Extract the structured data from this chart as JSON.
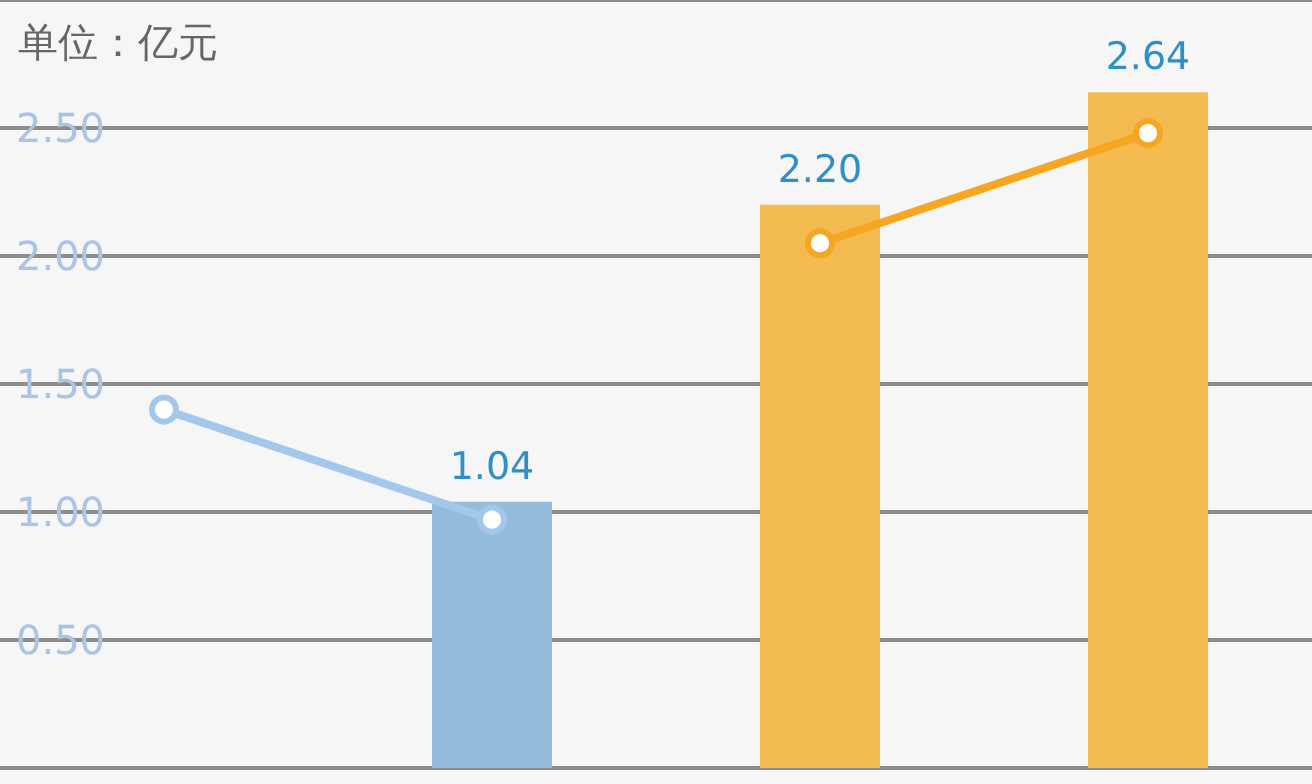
{
  "chart_data": {
    "type": "bar",
    "title": "单位：亿元",
    "categories": [
      null,
      null,
      null,
      null
    ],
    "ylim": [
      0,
      3
    ],
    "yticks": [
      {
        "value": 0,
        "label": null
      },
      {
        "value": 0.5,
        "label": "0.50"
      },
      {
        "value": 1,
        "label": "1.00"
      },
      {
        "value": 1.5,
        "label": "1.50"
      },
      {
        "value": 2,
        "label": "2.00"
      },
      {
        "value": 2.5,
        "label": "2.50"
      },
      {
        "value": 3,
        "label": null
      }
    ],
    "grid": "y",
    "marker": "circle",
    "line_style": "solid",
    "series": [
      {
        "colors": [
          "#93bcdc",
          "#93bcdc",
          "#f4bb50",
          "#f4bb50"
        ],
        "values": [
          null,
          1.04,
          2.2,
          2.64
        ],
        "value_labels": [
          null,
          "1.04",
          "2.20",
          "2.64"
        ]
      },
      {
        "type": "line",
        "color": "#a4c8ec",
        "values": [
          1.4,
          0.97,
          null,
          null
        ]
      },
      {
        "type": "line",
        "color": "#f5a623",
        "values": [
          null,
          null,
          2.05,
          2.48
        ]
      }
    ]
  }
}
